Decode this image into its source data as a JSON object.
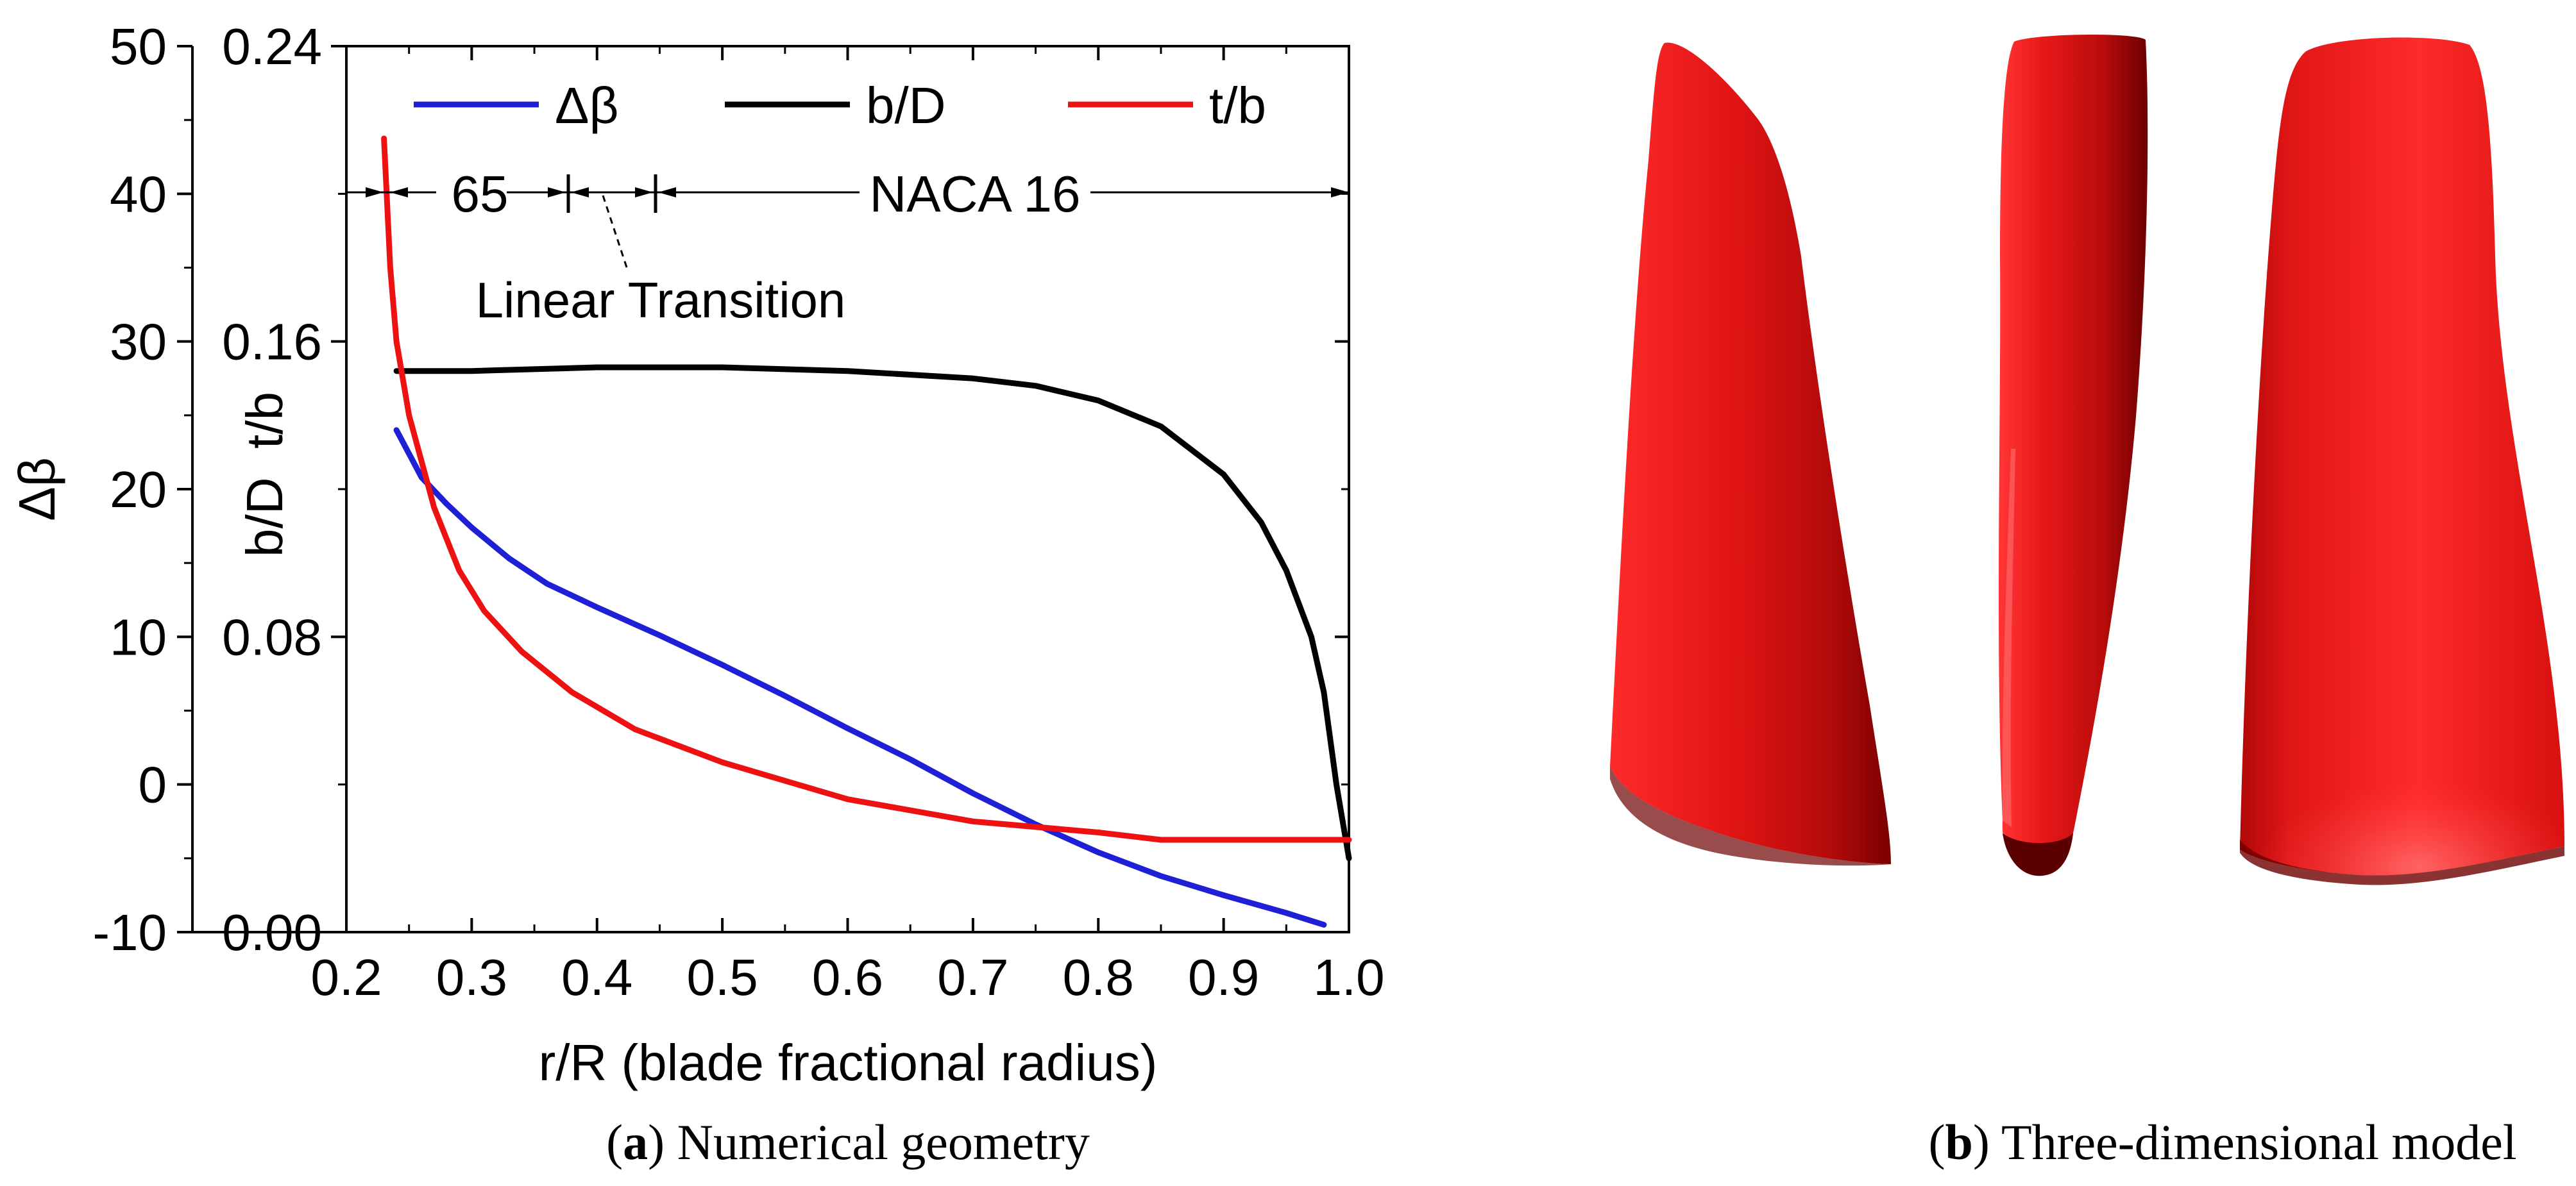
{
  "chart_data": {
    "type": "line",
    "panel_caption": {
      "letter": "a",
      "text": "Numerical geometry"
    },
    "xlabel": "r/R (blade fractional radius)",
    "xlim": [
      0.2,
      1.0
    ],
    "xticks": [
      0.2,
      0.3,
      0.4,
      0.5,
      0.6,
      0.7,
      0.8,
      0.9,
      1.0
    ],
    "xtick_labels": [
      "0.2",
      "0.3",
      "0.4",
      "0.5",
      "0.6",
      "0.7",
      "0.8",
      "0.9",
      "1.0"
    ],
    "y_left": {
      "label": "Δβ",
      "lim": [
        -10,
        50
      ],
      "ticks": [
        -10,
        0,
        10,
        20,
        30,
        40,
        50
      ],
      "tick_labels": [
        "-10",
        "0",
        "10",
        "20",
        "30",
        "40",
        "50"
      ]
    },
    "y_right": {
      "label": "b/D  t/b",
      "lim": [
        0.0,
        0.24
      ],
      "ticks": [
        0.0,
        0.08,
        0.16,
        0.24
      ],
      "tick_labels": [
        "0.00",
        "0.08",
        "0.16",
        "0.24"
      ]
    },
    "legend": {
      "placement": "top",
      "entries": [
        "Δβ",
        "b/D",
        "t/b"
      ]
    },
    "series": [
      {
        "name": "Δβ",
        "axis": "left",
        "color": "#1f1fd6",
        "x": [
          0.24,
          0.26,
          0.28,
          0.3,
          0.33,
          0.36,
          0.4,
          0.45,
          0.5,
          0.55,
          0.6,
          0.65,
          0.7,
          0.75,
          0.8,
          0.85,
          0.9,
          0.95,
          0.98
        ],
        "y": [
          24.0,
          20.8,
          19.0,
          17.4,
          15.3,
          13.6,
          12.0,
          10.1,
          8.1,
          6.0,
          3.8,
          1.7,
          -0.6,
          -2.7,
          -4.6,
          -6.2,
          -7.5,
          -8.7,
          -9.5
        ]
      },
      {
        "name": "b/D",
        "axis": "right",
        "color": "#000000",
        "x": [
          0.24,
          0.3,
          0.4,
          0.5,
          0.6,
          0.7,
          0.75,
          0.8,
          0.85,
          0.9,
          0.93,
          0.95,
          0.97,
          0.98,
          0.99,
          1.0
        ],
        "y": [
          0.152,
          0.152,
          0.153,
          0.153,
          0.152,
          0.15,
          0.148,
          0.144,
          0.137,
          0.124,
          0.111,
          0.098,
          0.08,
          0.065,
          0.04,
          0.02
        ]
      },
      {
        "name": "t/b",
        "axis": "right",
        "color": "#ee1111",
        "x": [
          0.23,
          0.235,
          0.24,
          0.25,
          0.27,
          0.29,
          0.31,
          0.34,
          0.38,
          0.43,
          0.5,
          0.55,
          0.6,
          0.7,
          0.8,
          0.85,
          0.9,
          0.95,
          1.0
        ],
        "y": [
          0.215,
          0.18,
          0.16,
          0.14,
          0.115,
          0.098,
          0.087,
          0.076,
          0.065,
          0.055,
          0.046,
          0.041,
          0.036,
          0.03,
          0.027,
          0.025,
          0.025,
          0.025,
          0.025
        ]
      }
    ],
    "annotations": {
      "section_65": "65",
      "section_naca": "NACA 16",
      "transition_label": "Linear Transition",
      "section_boundaries": [
        0.23,
        0.37,
        0.44,
        1.0
      ],
      "section_row_level": 40
    }
  },
  "model_panel": {
    "caption": {
      "letter": "b",
      "text": "Three-dimensional model"
    },
    "views": [
      "front-view",
      "side-view",
      "back-view"
    ],
    "colors": {
      "highlight": "#ff3a3a",
      "body": "#d81010",
      "shadow": "#7a0000"
    }
  }
}
